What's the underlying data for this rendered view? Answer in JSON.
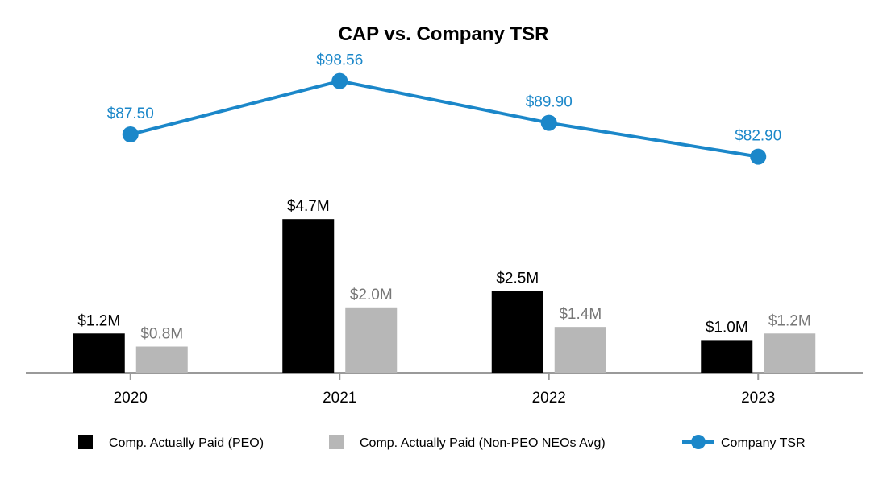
{
  "chart_data": {
    "type": "bar+line",
    "title": "CAP vs. Company TSR",
    "categories": [
      "2020",
      "2021",
      "2022",
      "2023"
    ],
    "series": [
      {
        "name": "Comp. Actually Paid (PEO)",
        "kind": "bar",
        "color": "#000000",
        "label_color": "#000000",
        "values": [
          1.2,
          4.7,
          2.5,
          1.0
        ],
        "labels": [
          "$1.2M",
          "$4.7M",
          "$2.5M",
          "$1.0M"
        ]
      },
      {
        "name": "Comp. Actually Paid (Non-PEO NEOs Avg)",
        "kind": "bar",
        "color": "#b7b7b7",
        "label_color": "#777777",
        "values": [
          0.8,
          2.0,
          1.4,
          1.2
        ],
        "labels": [
          "$0.8M",
          "$2.0M",
          "$1.4M",
          "$1.2M"
        ]
      },
      {
        "name": "Company TSR",
        "kind": "line",
        "color": "#1b87c9",
        "label_color": "#1b87c9",
        "values": [
          87.5,
          98.56,
          89.9,
          82.9
        ],
        "labels": [
          "$87.50",
          "$98.56",
          "$89.90",
          "$82.90"
        ]
      }
    ],
    "bar_axis_range": [
      0,
      5.0
    ],
    "line_axis_range": [
      60,
      110
    ],
    "grid": false,
    "legend_position": "bottom"
  }
}
